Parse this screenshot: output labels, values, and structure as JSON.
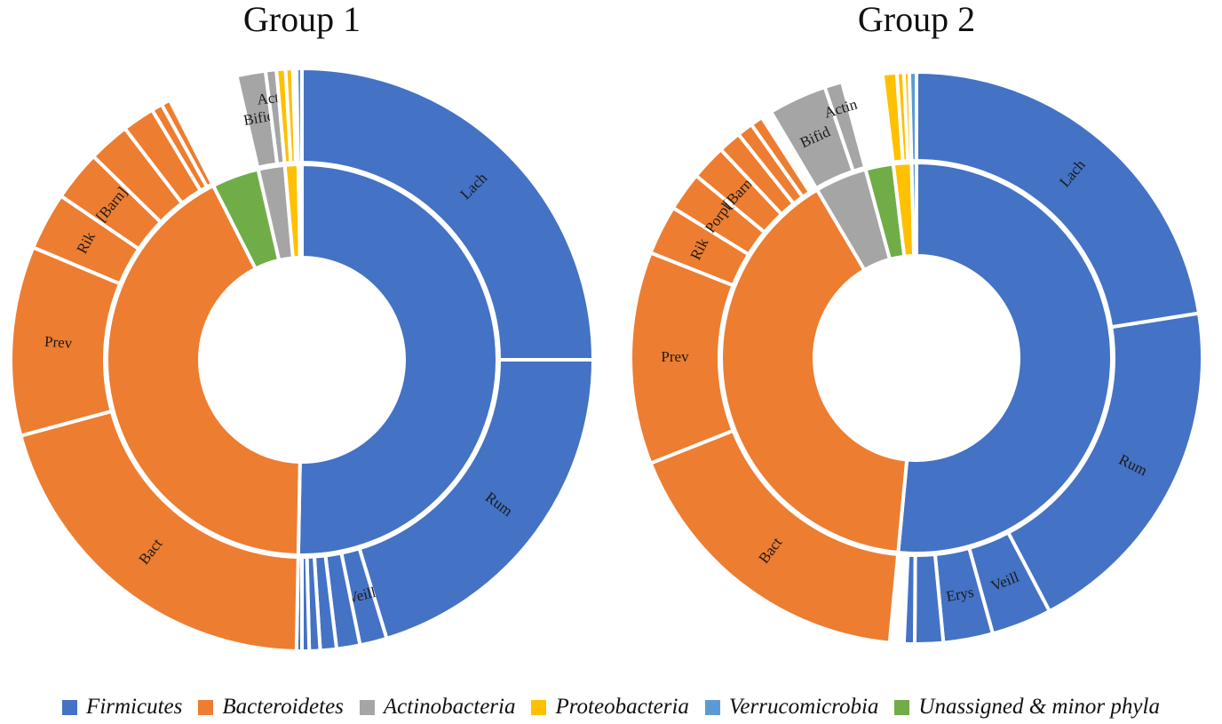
{
  "chart_data": {
    "type": "sunburst",
    "legend_position": "bottom",
    "legend": [
      {
        "name": "Firmicutes",
        "color": "#4472C4"
      },
      {
        "name": "Bacteroidetes",
        "color": "#ED7D31"
      },
      {
        "name": "Actinobacteria",
        "color": "#A5A5A5"
      },
      {
        "name": "Proteobacteria",
        "color": "#FFC000"
      },
      {
        "name": "Verrucomicrobia",
        "color": "#5B9BD5"
      },
      {
        "name": "Unassigned & minor phyla",
        "color": "#70AD47"
      }
    ],
    "charts": [
      {
        "title": "Group 1",
        "inner": [
          {
            "phylum": "Firmicutes",
            "percent": 50.3
          },
          {
            "phylum": "Bacteroidetes",
            "percent": 42.2
          },
          {
            "phylum": "Unassigned & minor phyla",
            "percent": 3.9
          },
          {
            "phylum": "Actinobacteria",
            "percent": 2.2
          },
          {
            "phylum": "Proteobacteria",
            "percent": 1.1
          },
          {
            "phylum": "Verrucomicrobia",
            "percent": 0.3
          }
        ],
        "outer": [
          {
            "phylum": "Firmicutes",
            "label": "Lach",
            "percent": 25.0
          },
          {
            "phylum": "Firmicutes",
            "label": "Rum",
            "percent": 20.3
          },
          {
            "phylum": "Firmicutes",
            "label": "Veill",
            "percent": 1.5
          },
          {
            "phylum": "Firmicutes",
            "label": "",
            "percent": 1.3
          },
          {
            "phylum": "Firmicutes",
            "label": "",
            "percent": 0.9
          },
          {
            "phylum": "Firmicutes",
            "label": "",
            "percent": 0.6
          },
          {
            "phylum": "Firmicutes",
            "label": "",
            "percent": 0.4
          },
          {
            "phylum": "Firmicutes",
            "label": "",
            "percent": 0.3
          },
          {
            "phylum": "Bacteroidetes",
            "label": "Bact",
            "percent": 20.5
          },
          {
            "phylum": "Bacteroidetes",
            "label": "Prev",
            "percent": 10.5
          },
          {
            "phylum": "Bacteroidetes",
            "label": "Rik",
            "percent": 3.2
          },
          {
            "phylum": "Bacteroidetes",
            "label": "[Barn]",
            "percent": 2.8
          },
          {
            "phylum": "Bacteroidetes",
            "label": "",
            "percent": 2.3
          },
          {
            "phylum": "Bacteroidetes",
            "label": "",
            "percent": 1.8
          },
          {
            "phylum": "Bacteroidetes",
            "label": "",
            "percent": 0.6
          },
          {
            "phylum": "Bacteroidetes",
            "label": "",
            "percent": 0.5
          },
          {
            "phylum": "Unassigned & minor phyla",
            "label": "",
            "percent": 3.9,
            "hidden": true
          },
          {
            "phylum": "Actinobacteria",
            "label": "Bifid",
            "percent": 1.6
          },
          {
            "phylum": "Actinobacteria",
            "label": "Actin",
            "percent": 0.6
          },
          {
            "phylum": "Proteobacteria",
            "label": "",
            "percent": 0.5
          },
          {
            "phylum": "Proteobacteria",
            "label": "",
            "percent": 0.4
          },
          {
            "phylum": "Proteobacteria",
            "label": "",
            "percent": 0.2
          },
          {
            "phylum": "Verrucomicrobia",
            "label": "",
            "percent": 0.3
          }
        ]
      },
      {
        "title": "Group 2",
        "inner": [
          {
            "phylum": "Firmicutes",
            "percent": 51.5
          },
          {
            "phylum": "Bacteroidetes",
            "percent": 40.0
          },
          {
            "phylum": "Actinobacteria",
            "percent": 4.3
          },
          {
            "phylum": "Unassigned & minor phyla",
            "percent": 2.3
          },
          {
            "phylum": "Proteobacteria",
            "percent": 1.5
          },
          {
            "phylum": "Verrucomicrobia",
            "percent": 0.4
          }
        ],
        "outer": [
          {
            "phylum": "Firmicutes",
            "label": "Lach",
            "percent": 22.5
          },
          {
            "phylum": "Firmicutes",
            "label": "Rum",
            "percent": 19.8
          },
          {
            "phylum": "Firmicutes",
            "label": "Veill",
            "percent": 3.4
          },
          {
            "phylum": "Firmicutes",
            "label": "Erys",
            "percent": 2.8
          },
          {
            "phylum": "Firmicutes",
            "label": "",
            "percent": 1.6
          },
          {
            "phylum": "Firmicutes",
            "label": "",
            "percent": 0.6
          },
          {
            "phylum": "Firmicutes",
            "label": "",
            "percent": 0.8,
            "hidden": true
          },
          {
            "phylum": "Bacteroidetes",
            "label": "Bact",
            "percent": 17.5
          },
          {
            "phylum": "Bacteroidetes",
            "label": "Prev",
            "percent": 12.0
          },
          {
            "phylum": "Bacteroidetes",
            "label": "Rik",
            "percent": 2.8
          },
          {
            "phylum": "Bacteroidetes",
            "label": "Porph",
            "percent": 2.2
          },
          {
            "phylum": "Bacteroidetes",
            "label": "[Barn]",
            "percent": 2.0
          },
          {
            "phylum": "Bacteroidetes",
            "label": "",
            "percent": 1.3
          },
          {
            "phylum": "Bacteroidetes",
            "label": "",
            "percent": 0.9
          },
          {
            "phylum": "Bacteroidetes",
            "label": "",
            "percent": 0.7
          },
          {
            "phylum": "Bacteroidetes",
            "label": "",
            "percent": 0.6,
            "hidden": true
          },
          {
            "phylum": "Actinobacteria",
            "label": "Bifid",
            "percent": 3.3
          },
          {
            "phylum": "Actinobacteria",
            "label": "Actin",
            "percent": 1.0
          },
          {
            "phylum": "Unassigned & minor phyla",
            "label": "",
            "percent": 2.3,
            "hidden": true
          },
          {
            "phylum": "Proteobacteria",
            "label": "",
            "percent": 0.8
          },
          {
            "phylum": "Proteobacteria",
            "label": "",
            "percent": 0.4
          },
          {
            "phylum": "Proteobacteria",
            "label": "",
            "percent": 0.3
          },
          {
            "phylum": "Verrucomicrobia",
            "label": "",
            "percent": 0.4
          }
        ]
      }
    ]
  }
}
